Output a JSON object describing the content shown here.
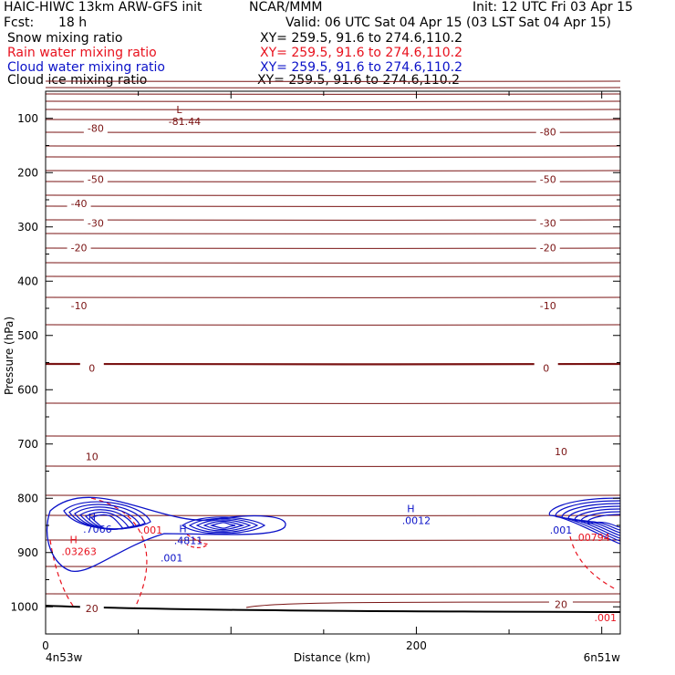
{
  "header": {
    "model_title": "HAIC-HIWC 13km ARW-GFS init",
    "org": "NCAR/MMM",
    "init": "Init: 12 UTC Fri 03 Apr 15",
    "fcst_label": "Fcst:",
    "fcst_value": "18 h",
    "valid": "Valid: 06 UTC Sat 04 Apr 15 (03 LST Sat 04 Apr 15)"
  },
  "fields": [
    {
      "name": "Snow mixing ratio",
      "xy": "XY= 259.5, 91.6 to 274.6,110.2",
      "color": "#000000"
    },
    {
      "name": "Rain water mixing ratio",
      "xy": "XY= 259.5, 91.6 to 274.6,110.2",
      "color": "#e8121e"
    },
    {
      "name": "Cloud water mixing ratio",
      "xy": "XY= 259.5, 91.6 to 274.6,110.2",
      "color": "#0b12c8"
    },
    {
      "name": "Cloud ice mixing ratio",
      "xy": "XY= 259.5, 91.6 to 274.6,110.2",
      "color": "#000000"
    }
  ],
  "chart_data": {
    "type": "line",
    "xlabel": "Distance (km)",
    "ylabel": "Pressure (hPa)",
    "xlim": [
      0,
      310
    ],
    "ylim": [
      1050,
      50
    ],
    "x_ticks": [
      0,
      200
    ],
    "y_ticks": [
      100,
      200,
      300,
      400,
      500,
      600,
      700,
      800,
      900,
      1000
    ],
    "x_left_label": "4n53w",
    "x_right_label": "6n51w",
    "colors": {
      "temperature": "#7a1414",
      "rain": "#e8121e",
      "cloud": "#0b12c8",
      "ground": "#000000"
    },
    "temperature_labels": [
      {
        "text": "-80",
        "x": 27,
        "p": 118
      },
      {
        "text": "-80",
        "x": 271,
        "p": 125
      },
      {
        "text": "-50",
        "x": 27,
        "p": 212
      },
      {
        "text": "-50",
        "x": 271,
        "p": 212
      },
      {
        "text": "-40",
        "x": 18,
        "p": 257
      },
      {
        "text": "-30",
        "x": 27,
        "p": 293
      },
      {
        "text": "-30",
        "x": 271,
        "p": 293
      },
      {
        "text": "-20",
        "x": 18,
        "p": 338
      },
      {
        "text": "-20",
        "x": 271,
        "p": 338
      },
      {
        "text": "-10",
        "x": 18,
        "p": 445
      },
      {
        "text": "-10",
        "x": 271,
        "p": 445
      },
      {
        "text": "0",
        "x": 25,
        "p": 560
      },
      {
        "text": "0",
        "x": 270,
        "p": 560
      },
      {
        "text": "10",
        "x": 25,
        "p": 723
      },
      {
        "text": "10",
        "x": 278,
        "p": 714
      },
      {
        "text": "20",
        "x": 25,
        "p": 1003
      },
      {
        "text": "20",
        "x": 278,
        "p": 995
      }
    ],
    "extrema": [
      {
        "mark": "L",
        "value": "-81.44",
        "x": 75,
        "p": 100,
        "color": "temperature"
      },
      {
        "mark": "H",
        "value": ".7066",
        "x": 28,
        "p": 852,
        "color": "cloud"
      },
      {
        "mark": "H",
        "value": ".4811",
        "x": 77,
        "p": 873,
        "color": "cloud"
      },
      {
        "mark": "H",
        "value": ".0012",
        "x": 200,
        "p": 836,
        "color": "cloud"
      },
      {
        "mark": "H",
        "value": ".03263",
        "x": 18,
        "p": 893,
        "color": "rain"
      }
    ],
    "contour_labels": [
      {
        "text": ".001",
        "x": 57,
        "p": 858,
        "color": "rain"
      },
      {
        "text": ".001",
        "x": 68,
        "p": 910,
        "color": "cloud"
      },
      {
        "text": ".001",
        "x": 278,
        "p": 858,
        "color": "cloud"
      },
      {
        "text": ".00794",
        "x": 295,
        "p": 872,
        "color": "rain"
      },
      {
        "text": ".001",
        "x": 302,
        "p": 1020,
        "color": "rain"
      }
    ]
  }
}
